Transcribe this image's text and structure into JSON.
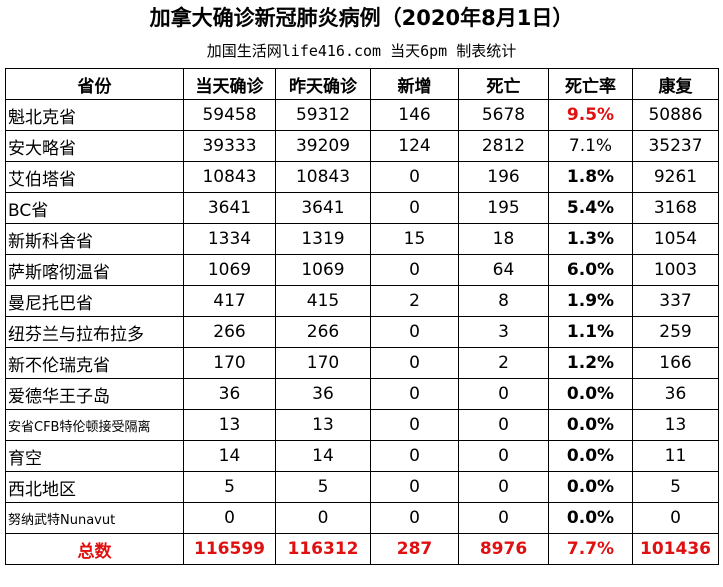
{
  "header": {
    "title": "加拿大确诊新冠肺炎病例（2020年8月1日）",
    "subtitle": "加国生活网life416.com 当天6pm 制表统计"
  },
  "table": {
    "columns": [
      "省份",
      "当天确诊",
      "昨天确诊",
      "新增",
      "死亡",
      "死亡率",
      "康复"
    ],
    "rows": [
      [
        "魁北克省",
        59458,
        59312,
        146,
        5678,
        "9.5%",
        50886
      ],
      [
        "安大略省",
        39333,
        39209,
        124,
        2812,
        "7.1%",
        35237
      ],
      [
        "艾伯塔省",
        10843,
        10843,
        0,
        196,
        "1.8%",
        9261
      ],
      [
        "BC省",
        3641,
        3641,
        0,
        195,
        "5.4%",
        3168
      ],
      [
        "新斯科舍省",
        1334,
        1319,
        15,
        18,
        "1.3%",
        1054
      ],
      [
        "萨斯喀彻温省",
        1069,
        1069,
        0,
        64,
        "6.0%",
        1003
      ],
      [
        "曼尼托巴省",
        417,
        415,
        2,
        8,
        "1.9%",
        337
      ],
      [
        "纽芬兰与拉布拉多",
        266,
        266,
        0,
        3,
        "1.1%",
        259
      ],
      [
        "新不伦瑞克省",
        170,
        170,
        0,
        2,
        "1.2%",
        166
      ],
      [
        "爱德华王子岛",
        36,
        36,
        0,
        0,
        "0.0%",
        36
      ],
      [
        "安省CFB特伦顿接受隔离",
        13,
        13,
        0,
        0,
        "0.0%",
        13
      ],
      [
        "育空",
        14,
        14,
        0,
        0,
        "0.0%",
        11
      ],
      [
        "西北地区",
        5,
        5,
        0,
        0,
        "0.0%",
        5
      ],
      [
        "努纳武特Nunavut",
        0,
        0,
        0,
        0,
        "0.0%",
        0
      ]
    ],
    "total": [
      "总数",
      116599,
      116312,
      287,
      8976,
      "7.7%",
      101436
    ]
  }
}
